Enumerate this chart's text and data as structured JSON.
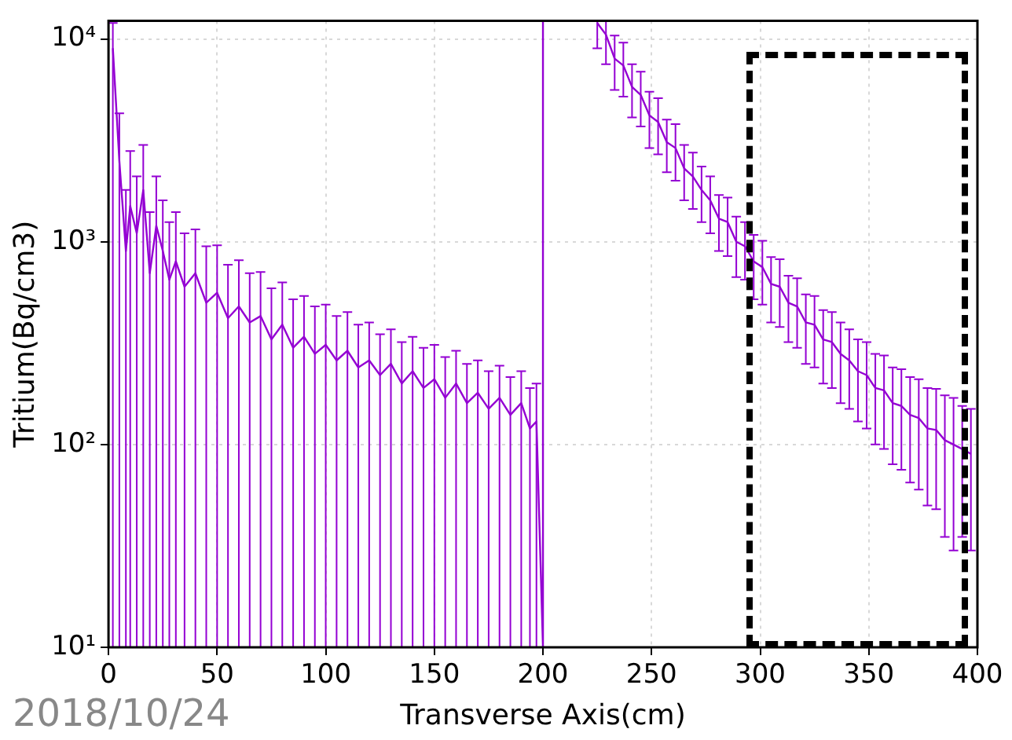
{
  "chart_data": {
    "type": "line",
    "xlabel": "Transverse Axis(cm)",
    "ylabel": "Tritium(Bq/cm3)",
    "xlim": [
      0,
      400
    ],
    "xticks": [
      0,
      50,
      100,
      150,
      200,
      250,
      300,
      350,
      400
    ],
    "ylim": [
      10,
      12300
    ],
    "yticks": [
      {
        "value": 10,
        "label": "10¹"
      },
      {
        "value": 100,
        "label": "10²"
      },
      {
        "value": 1000,
        "label": "10³"
      },
      {
        "value": 10000,
        "label": "10⁴"
      }
    ],
    "log": "y",
    "grid": true,
    "marker": "none",
    "line_style": "solid",
    "legend": false,
    "annotations": [
      "2018/10/24"
    ],
    "series": [
      {
        "color": "#9400d3",
        "x": [
          2,
          5,
          8,
          10,
          13,
          16,
          19,
          22,
          25,
          28,
          31,
          35,
          40,
          45,
          50,
          55,
          60,
          65,
          70,
          75,
          80,
          85,
          90,
          95,
          100,
          105,
          110,
          115,
          120,
          125,
          130,
          135,
          140,
          145,
          150,
          155,
          160,
          165,
          170,
          175,
          180,
          185,
          190,
          194,
          197,
          200,
          200,
          212,
          225,
          229,
          233,
          237,
          241,
          245,
          249,
          253,
          257,
          261,
          265,
          269,
          273,
          277,
          281,
          285,
          289,
          293,
          297,
          301,
          305,
          309,
          313,
          317,
          321,
          325,
          329,
          333,
          337,
          341,
          345,
          349,
          353,
          357,
          361,
          365,
          369,
          373,
          377,
          381,
          385,
          389,
          393,
          397
        ],
        "values": [
          9000,
          2500,
          900,
          1500,
          1100,
          1800,
          700,
          1200,
          900,
          650,
          800,
          600,
          700,
          500,
          560,
          420,
          480,
          400,
          430,
          330,
          390,
          300,
          340,
          280,
          310,
          260,
          290,
          240,
          260,
          220,
          250,
          200,
          230,
          190,
          210,
          170,
          200,
          160,
          180,
          150,
          170,
          140,
          160,
          120,
          130,
          10,
          12300,
          null,
          12000,
          10500,
          8000,
          7400,
          5800,
          5300,
          4200,
          3900,
          3100,
          2900,
          2300,
          2100,
          1800,
          1600,
          1300,
          1250,
          1000,
          950,
          800,
          750,
          620,
          600,
          500,
          480,
          400,
          390,
          330,
          320,
          280,
          260,
          230,
          220,
          190,
          185,
          160,
          155,
          140,
          135,
          120,
          118,
          105,
          100,
          95,
          90
        ],
        "errors": [
          [
            10,
            12000
          ],
          [
            10,
            4300
          ],
          [
            10,
            1800
          ],
          [
            10,
            2800
          ],
          [
            10,
            2100
          ],
          [
            10,
            3000
          ],
          [
            10,
            1400
          ],
          [
            10,
            2100
          ],
          [
            10,
            1600
          ],
          [
            10,
            1250
          ],
          [
            10,
            1400
          ],
          [
            10,
            1100
          ],
          [
            10,
            1150
          ],
          [
            10,
            950
          ],
          [
            10,
            960
          ],
          [
            10,
            770
          ],
          [
            10,
            810
          ],
          [
            10,
            700
          ],
          [
            10,
            710
          ],
          [
            10,
            590
          ],
          [
            10,
            630
          ],
          [
            10,
            520
          ],
          [
            10,
            540
          ],
          [
            10,
            480
          ],
          [
            10,
            490
          ],
          [
            10,
            430
          ],
          [
            10,
            450
          ],
          [
            10,
            390
          ],
          [
            10,
            400
          ],
          [
            10,
            350
          ],
          [
            10,
            370
          ],
          [
            10,
            320
          ],
          [
            10,
            340
          ],
          [
            10,
            300
          ],
          [
            10,
            310
          ],
          [
            10,
            270
          ],
          [
            10,
            290
          ],
          [
            10,
            250
          ],
          [
            10,
            260
          ],
          [
            10,
            230
          ],
          [
            10,
            245
          ],
          [
            10,
            215
          ],
          [
            10,
            230
          ],
          [
            10,
            190
          ],
          [
            10,
            200
          ],
          null,
          null,
          null,
          [
            9000,
            12300
          ],
          [
            7500,
            12300
          ],
          2400,
          2200,
          1700,
          1600,
          1300,
          1200,
          900,
          900,
          700,
          650,
          550,
          500,
          400,
          400,
          330,
          300,
          280,
          260,
          220,
          220,
          180,
          180,
          150,
          150,
          130,
          130,
          120,
          110,
          100,
          100,
          90,
          90,
          80,
          80,
          75,
          75,
          70,
          70,
          70,
          70,
          60,
          60
        ]
      }
    ]
  }
}
